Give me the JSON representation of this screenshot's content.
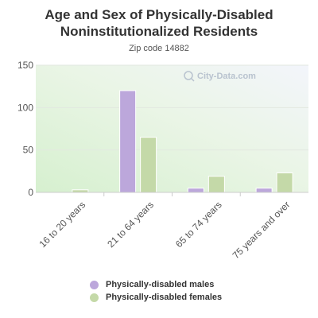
{
  "chart_data": {
    "type": "bar",
    "title": "Age and Sex of Physically-Disabled Noninstitutionalized Residents",
    "subtitle": "Zip code 14882",
    "categories": [
      "16 to 20 years",
      "21 to 64 years",
      "65 to 74 years",
      "75 years and over"
    ],
    "series": [
      {
        "name": "Physically-disabled males",
        "color": "#bca7db",
        "values": [
          0,
          120,
          5,
          5
        ]
      },
      {
        "name": "Physically-disabled females",
        "color": "#c4d9a8",
        "values": [
          3,
          65,
          19,
          23
        ]
      }
    ],
    "ylim": [
      0,
      150
    ],
    "yticks": [
      0,
      50,
      100,
      150
    ],
    "grid": true,
    "legend_position": "bottom",
    "watermark": "City-Data.com"
  }
}
